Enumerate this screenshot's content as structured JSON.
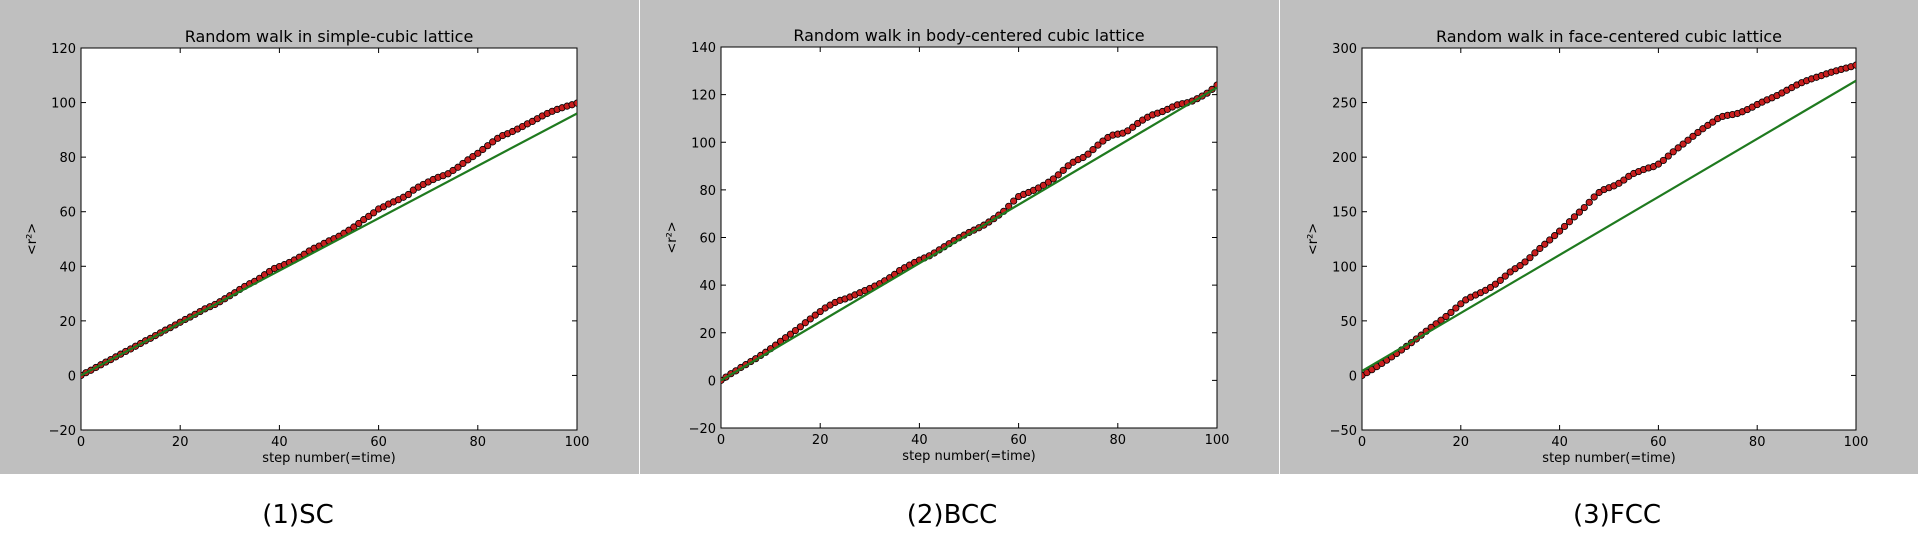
{
  "colors": {
    "fit_line": "#1f7a1f",
    "marker_fill": "#c81e1e",
    "marker_edge": "#000000",
    "panel_bg": "#bfbfbf"
  },
  "chart_data": [
    {
      "type": "scatter",
      "title": "Random walk in simple-cubic lattice",
      "xlabel": "step number(=time)",
      "ylabel": "<r²>",
      "caption": "(1)SC",
      "xlim": [
        0,
        100
      ],
      "ylim": [
        -20,
        120
      ],
      "xticks": [
        "0",
        "20",
        "40",
        "60",
        "80",
        "100"
      ],
      "yticks": [
        "−20",
        "0",
        "20",
        "40",
        "60",
        "80",
        "100",
        "120"
      ],
      "grid": false,
      "fit_line": {
        "x": [
          0,
          100
        ],
        "y": [
          0,
          96
        ]
      },
      "series": [
        {
          "x": [
            0,
            1,
            2,
            3,
            4,
            5,
            6,
            7,
            8,
            9,
            10,
            11,
            12,
            13,
            14,
            15,
            16,
            17,
            18,
            19,
            20,
            21,
            22,
            23,
            24,
            25,
            26,
            27,
            28,
            29,
            30,
            31,
            32,
            33,
            34,
            35,
            36,
            37,
            38,
            39,
            40,
            41,
            42,
            43,
            44,
            45,
            46,
            47,
            48,
            49,
            50,
            51,
            52,
            53,
            54,
            55,
            56,
            57,
            58,
            59,
            60,
            61,
            62,
            63,
            64,
            65,
            66,
            67,
            68,
            69,
            70,
            71,
            72,
            73,
            74,
            75,
            76,
            77,
            78,
            79,
            80,
            81,
            82,
            83,
            84,
            85,
            86,
            87,
            88,
            89,
            90,
            91,
            92,
            93,
            94,
            95,
            96,
            97,
            98,
            99,
            100
          ],
          "y": [
            0,
            1.0,
            1.9,
            2.9,
            3.9,
            4.9,
            5.8,
            6.8,
            7.8,
            8.8,
            9.7,
            10.7,
            11.7,
            12.7,
            13.6,
            14.6,
            15.6,
            16.6,
            17.5,
            18.5,
            19.5,
            20.5,
            21.4,
            22.4,
            23.4,
            24.4,
            25.2,
            26.0,
            27.0,
            28.1,
            29.2,
            30.3,
            31.5,
            32.6,
            33.6,
            34.5,
            35.6,
            36.9,
            38.1,
            39.2,
            39.9,
            40.6,
            41.4,
            42.3,
            43.3,
            44.4,
            45.6,
            46.6,
            47.4,
            48.4,
            49.3,
            50.1,
            51.0,
            52.1,
            53.2,
            54.4,
            55.7,
            57.1,
            58.3,
            59.6,
            61.0,
            61.8,
            62.8,
            63.6,
            64.4,
            65.3,
            66.3,
            67.9,
            69.0,
            70.0,
            70.9,
            71.8,
            72.6,
            73.2,
            73.9,
            75.1,
            76.3,
            77.7,
            79.0,
            80.2,
            81.4,
            82.8,
            84.2,
            85.6,
            86.9,
            87.9,
            88.6,
            89.4,
            90.3,
            91.2,
            92.2,
            93.1,
            94.1,
            95.1,
            96.0,
            96.8,
            97.5,
            98.1,
            98.7,
            99.2,
            99.8
          ]
        }
      ]
    },
    {
      "type": "scatter",
      "title": "Random walk in body-centered cubic lattice",
      "xlabel": "step number(=time)",
      "ylabel": "<r²>",
      "caption": "(2)BCC",
      "xlim": [
        0,
        100
      ],
      "ylim": [
        -20,
        140
      ],
      "xticks": [
        "0",
        "20",
        "40",
        "60",
        "80",
        "100"
      ],
      "yticks": [
        "−20",
        "0",
        "20",
        "40",
        "60",
        "80",
        "100",
        "120",
        "140"
      ],
      "grid": false,
      "fit_line": {
        "x": [
          0,
          100
        ],
        "y": [
          0,
          123
        ]
      },
      "series": [
        {
          "x": [
            0,
            1,
            2,
            3,
            4,
            5,
            6,
            7,
            8,
            9,
            10,
            11,
            12,
            13,
            14,
            15,
            16,
            17,
            18,
            19,
            20,
            21,
            22,
            23,
            24,
            25,
            26,
            27,
            28,
            29,
            30,
            31,
            32,
            33,
            34,
            35,
            36,
            37,
            38,
            39,
            40,
            41,
            42,
            43,
            44,
            45,
            46,
            47,
            48,
            49,
            50,
            51,
            52,
            53,
            54,
            55,
            56,
            57,
            58,
            59,
            60,
            61,
            62,
            63,
            64,
            65,
            66,
            67,
            68,
            69,
            70,
            71,
            72,
            73,
            74,
            75,
            76,
            77,
            78,
            79,
            80,
            81,
            82,
            83,
            84,
            85,
            86,
            87,
            88,
            89,
            90,
            91,
            92,
            93,
            94,
            95,
            96,
            97,
            98,
            99,
            100
          ],
          "y": [
            0,
            1.4,
            2.8,
            4.0,
            5.4,
            6.6,
            7.9,
            9.1,
            10.5,
            11.8,
            13.3,
            14.8,
            16.4,
            17.9,
            19.4,
            20.9,
            22.5,
            24.2,
            25.8,
            27.4,
            28.9,
            30.4,
            31.6,
            32.7,
            33.6,
            34.2,
            35.0,
            35.9,
            36.8,
            37.7,
            38.6,
            39.6,
            40.6,
            41.8,
            43.1,
            44.5,
            46.1,
            47.3,
            48.4,
            49.5,
            50.5,
            51.4,
            52.3,
            53.5,
            54.8,
            56.1,
            57.4,
            58.7,
            59.9,
            61.0,
            62.1,
            63.1,
            64.1,
            65.2,
            66.5,
            67.9,
            69.4,
            71.0,
            73.1,
            75.3,
            77.2,
            78.1,
            78.9,
            79.8,
            80.8,
            81.9,
            83.2,
            84.6,
            86.3,
            88.2,
            90.1,
            91.6,
            92.7,
            93.6,
            95.0,
            96.9,
            98.8,
            100.5,
            102.0,
            103.0,
            103.4,
            103.8,
            104.8,
            106.3,
            107.9,
            109.3,
            110.5,
            111.5,
            112.2,
            112.9,
            113.8,
            114.8,
            115.7,
            116.2,
            116.6,
            117.3,
            118.3,
            119.4,
            120.6,
            122.2,
            124.0
          ]
        }
      ]
    },
    {
      "type": "scatter",
      "title": "Random walk in face-centered cubic lattice",
      "xlabel": "step number(=time)",
      "ylabel": "<r²>",
      "caption": "(3)FCC",
      "xlim": [
        0,
        100
      ],
      "ylim": [
        -50,
        300
      ],
      "xticks": [
        "0",
        "20",
        "40",
        "60",
        "80",
        "100"
      ],
      "yticks": [
        "−50",
        "0",
        "50",
        "100",
        "150",
        "200",
        "250",
        "300"
      ],
      "grid": false,
      "fit_line": {
        "x": [
          0,
          100
        ],
        "y": [
          4,
          270
        ]
      },
      "series": [
        {
          "x": [
            0,
            1,
            2,
            3,
            4,
            5,
            6,
            7,
            8,
            9,
            10,
            11,
            12,
            13,
            14,
            15,
            16,
            17,
            18,
            19,
            20,
            21,
            22,
            23,
            24,
            25,
            26,
            27,
            28,
            29,
            30,
            31,
            32,
            33,
            34,
            35,
            36,
            37,
            38,
            39,
            40,
            41,
            42,
            43,
            44,
            45,
            46,
            47,
            48,
            49,
            50,
            51,
            52,
            53,
            54,
            55,
            56,
            57,
            58,
            59,
            60,
            61,
            62,
            63,
            64,
            65,
            66,
            67,
            68,
            69,
            70,
            71,
            72,
            73,
            74,
            75,
            76,
            77,
            78,
            79,
            80,
            81,
            82,
            83,
            84,
            85,
            86,
            87,
            88,
            89,
            90,
            91,
            92,
            93,
            94,
            95,
            96,
            97,
            98,
            99,
            100
          ],
          "y": [
            0,
            2.6,
            5.3,
            8.1,
            11.0,
            14.0,
            17.0,
            20.1,
            23.3,
            26.6,
            30.0,
            33.4,
            36.9,
            40.5,
            44.0,
            47.3,
            50.6,
            54.0,
            57.7,
            61.7,
            65.6,
            69.2,
            71.7,
            73.7,
            75.8,
            78.0,
            80.6,
            83.6,
            87.1,
            91.0,
            94.8,
            97.8,
            100.6,
            104.0,
            107.9,
            112.3,
            116.3,
            120.2,
            124.1,
            128.1,
            132.2,
            136.5,
            140.8,
            145.3,
            149.6,
            153.8,
            158.6,
            163.5,
            167.6,
            170.3,
            172.0,
            173.7,
            176.0,
            179.0,
            182.4,
            185.0,
            186.8,
            188.6,
            190.1,
            191.3,
            193.6,
            197.0,
            201.0,
            204.9,
            208.5,
            212.0,
            215.5,
            219.1,
            222.6,
            226.0,
            229.1,
            232.1,
            235.3,
            237.3,
            238.3,
            239.0,
            240.0,
            241.6,
            243.6,
            245.8,
            248.2,
            250.4,
            252.5,
            254.4,
            256.4,
            258.8,
            261.3,
            263.7,
            266.1,
            268.2,
            270.0,
            271.7,
            273.2,
            274.7,
            276.3,
            277.8,
            279.1,
            280.4,
            281.6,
            282.9,
            284.3
          ]
        }
      ]
    }
  ]
}
